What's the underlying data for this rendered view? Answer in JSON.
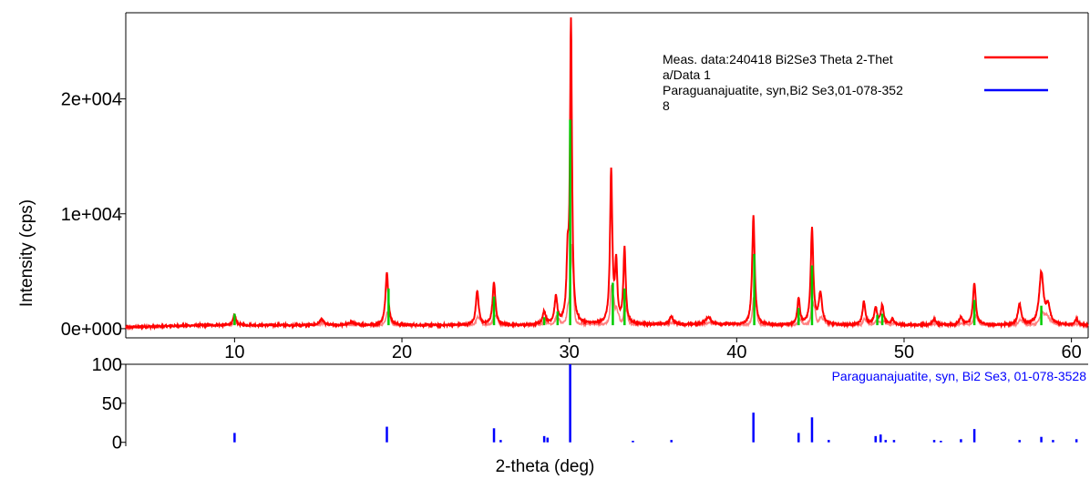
{
  "colors": {
    "measured": "#ff0000",
    "measured_light": "#ff8080",
    "calculated": "#00cc00",
    "reference": "#0000ff",
    "axis": "#000000"
  },
  "chart_data": [
    {
      "type": "line",
      "title": "",
      "xlabel": "",
      "ylabel": "Intensity (cps)",
      "xlim": [
        3.5,
        61
      ],
      "ylim": [
        -800,
        27500
      ],
      "y_ticks": [
        0,
        10000,
        20000
      ],
      "y_tick_labels": [
        "0e+000",
        "1e+004",
        "2e+004"
      ],
      "legend": {
        "placement": "top-right",
        "entries": [
          {
            "lines": [
              "Meas. data:240418 Bi2Se3  Theta  2-Thet",
              "a/Data 1"
            ],
            "color": "#ff0000"
          },
          {
            "lines": [
              "Paraguanajuatite, syn,Bi2 Se3,01-078-352",
              "8"
            ],
            "color": "#0000ff"
          }
        ]
      },
      "series": [
        {
          "name": "Meas. data:240418 Bi2Se3  Theta  2-Theta/Data 1",
          "color": "#ff0000",
          "baseline": 300,
          "peaks": [
            {
              "x": 10.0,
              "y": 900,
              "w": 0.1
            },
            {
              "x": 15.2,
              "y": 500,
              "w": 0.15
            },
            {
              "x": 17.0,
              "y": 250,
              "w": 0.2
            },
            {
              "x": 19.1,
              "y": 4600,
              "w": 0.1
            },
            {
              "x": 24.5,
              "y": 3000,
              "w": 0.1
            },
            {
              "x": 25.5,
              "y": 3700,
              "w": 0.1
            },
            {
              "x": 28.5,
              "y": 1100,
              "w": 0.1
            },
            {
              "x": 29.2,
              "y": 2300,
              "w": 0.1
            },
            {
              "x": 29.9,
              "y": 5000,
              "w": 0.08
            },
            {
              "x": 30.1,
              "y": 26000,
              "w": 0.07
            },
            {
              "x": 32.5,
              "y": 13200,
              "w": 0.08
            },
            {
              "x": 32.8,
              "y": 5000,
              "w": 0.08
            },
            {
              "x": 33.3,
              "y": 6500,
              "w": 0.08
            },
            {
              "x": 36.1,
              "y": 700,
              "w": 0.12
            },
            {
              "x": 38.3,
              "y": 600,
              "w": 0.2
            },
            {
              "x": 41.0,
              "y": 9500,
              "w": 0.09
            },
            {
              "x": 43.7,
              "y": 2300,
              "w": 0.09
            },
            {
              "x": 44.5,
              "y": 8300,
              "w": 0.09
            },
            {
              "x": 45.0,
              "y": 2700,
              "w": 0.12
            },
            {
              "x": 47.6,
              "y": 2000,
              "w": 0.1
            },
            {
              "x": 48.3,
              "y": 1500,
              "w": 0.1
            },
            {
              "x": 48.7,
              "y": 1700,
              "w": 0.1
            },
            {
              "x": 49.3,
              "y": 500,
              "w": 0.1
            },
            {
              "x": 51.8,
              "y": 500,
              "w": 0.12
            },
            {
              "x": 53.4,
              "y": 700,
              "w": 0.12
            },
            {
              "x": 54.2,
              "y": 3600,
              "w": 0.1
            },
            {
              "x": 56.9,
              "y": 1800,
              "w": 0.12
            },
            {
              "x": 58.2,
              "y": 4500,
              "w": 0.15
            },
            {
              "x": 58.6,
              "y": 1500,
              "w": 0.15
            },
            {
              "x": 60.3,
              "y": 500,
              "w": 0.12
            }
          ]
        },
        {
          "name": "calculated",
          "color": "#00cc00",
          "sticks": [
            {
              "x": 10.0,
              "y": 1300
            },
            {
              "x": 19.2,
              "y": 3500
            },
            {
              "x": 25.5,
              "y": 2800
            },
            {
              "x": 28.5,
              "y": 1000
            },
            {
              "x": 29.3,
              "y": 1500
            },
            {
              "x": 30.05,
              "y": 18200
            },
            {
              "x": 32.6,
              "y": 4000
            },
            {
              "x": 33.3,
              "y": 3500
            },
            {
              "x": 41.05,
              "y": 6500
            },
            {
              "x": 43.7,
              "y": 1800
            },
            {
              "x": 44.5,
              "y": 5500
            },
            {
              "x": 48.4,
              "y": 1200
            },
            {
              "x": 48.7,
              "y": 1300
            },
            {
              "x": 54.2,
              "y": 2500
            },
            {
              "x": 58.2,
              "y": 2000
            }
          ]
        }
      ]
    },
    {
      "type": "bar",
      "title": "",
      "xlabel": "2-theta (deg)",
      "ylabel": "",
      "xlim": [
        3.5,
        61
      ],
      "ylim": [
        -5,
        100
      ],
      "x_ticks": [
        10,
        20,
        30,
        40,
        50,
        60
      ],
      "y_ticks": [
        0,
        50,
        100
      ],
      "y_tick_labels": [
        "0",
        "50",
        "100"
      ],
      "series_label": "Paraguanajuatite, syn, Bi2 Se3, 01-078-3528",
      "color": "#0000ff",
      "sticks": [
        {
          "x": 10.0,
          "y": 12
        },
        {
          "x": 19.1,
          "y": 20
        },
        {
          "x": 25.5,
          "y": 18
        },
        {
          "x": 25.9,
          "y": 3
        },
        {
          "x": 28.5,
          "y": 8
        },
        {
          "x": 28.7,
          "y": 6
        },
        {
          "x": 30.05,
          "y": 100
        },
        {
          "x": 33.8,
          "y": 2
        },
        {
          "x": 36.1,
          "y": 3
        },
        {
          "x": 41.0,
          "y": 38
        },
        {
          "x": 43.7,
          "y": 12
        },
        {
          "x": 44.5,
          "y": 32
        },
        {
          "x": 45.5,
          "y": 3
        },
        {
          "x": 48.3,
          "y": 8
        },
        {
          "x": 48.6,
          "y": 10
        },
        {
          "x": 48.9,
          "y": 3
        },
        {
          "x": 49.4,
          "y": 3
        },
        {
          "x": 51.8,
          "y": 3
        },
        {
          "x": 52.2,
          "y": 2
        },
        {
          "x": 53.4,
          "y": 4
        },
        {
          "x": 54.2,
          "y": 17
        },
        {
          "x": 56.9,
          "y": 3
        },
        {
          "x": 58.2,
          "y": 7
        },
        {
          "x": 58.9,
          "y": 3
        },
        {
          "x": 60.3,
          "y": 4
        }
      ]
    }
  ]
}
